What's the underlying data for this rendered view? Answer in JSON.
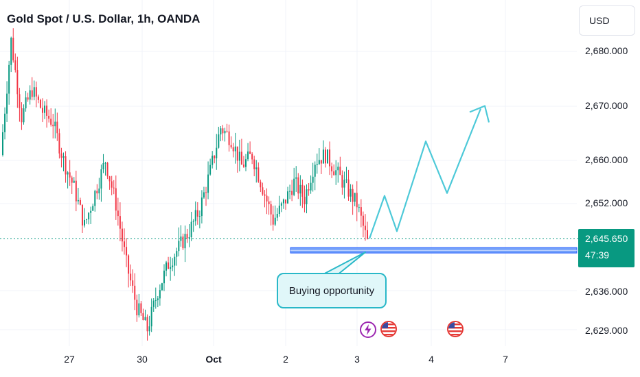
{
  "header": {
    "title": "Gold Spot / U.S. Dollar, 1h, OANDA",
    "currency": "USD"
  },
  "price_tag": {
    "price": "2,645.650",
    "countdown": "47:39"
  },
  "annotation": {
    "label": "Buying opportunity"
  },
  "events": [
    "lightning-icon",
    "us-flag-icon",
    "us-flag-icon"
  ],
  "colors": {
    "up": "#089981",
    "down": "#f23645",
    "projection": "#4dc9d8",
    "zone": "#2962ff",
    "callout_border": "#29b8c8",
    "callout_fill": "#e0f7f9"
  },
  "chart_data": {
    "type": "candlestick",
    "title": "Gold Spot / U.S. Dollar, 1h, OANDA",
    "y_ticks": [
      "2,680.000",
      "2,670.000",
      "2,660.000",
      "2,652.000",
      "2,636.000",
      "2,629.000"
    ],
    "x_ticks": [
      "27",
      "30",
      "Oct",
      "2",
      "3",
      "4",
      "7"
    ],
    "ylim": [
      2626,
      2688
    ],
    "current_price": 2645.65,
    "support_zone": [
      2643.0,
      2644.0
    ],
    "close_path": [
      2661,
      2682,
      2668,
      2673,
      2669,
      2667,
      2660,
      2655,
      2648,
      2654,
      2660,
      2652,
      2641,
      2633,
      2629,
      2636,
      2641,
      2644,
      2647,
      2651,
      2658,
      2666,
      2664,
      2659,
      2661,
      2655,
      2649,
      2652,
      2656,
      2653,
      2660,
      2661,
      2658,
      2655,
      2652,
      2645
    ],
    "projection": [
      [
        2645.65,
        0
      ],
      [
        2653.5,
        1
      ],
      [
        2647.0,
        2
      ],
      [
        2663.5,
        3
      ],
      [
        2654.0,
        4
      ],
      [
        2669.5,
        5
      ]
    ]
  }
}
